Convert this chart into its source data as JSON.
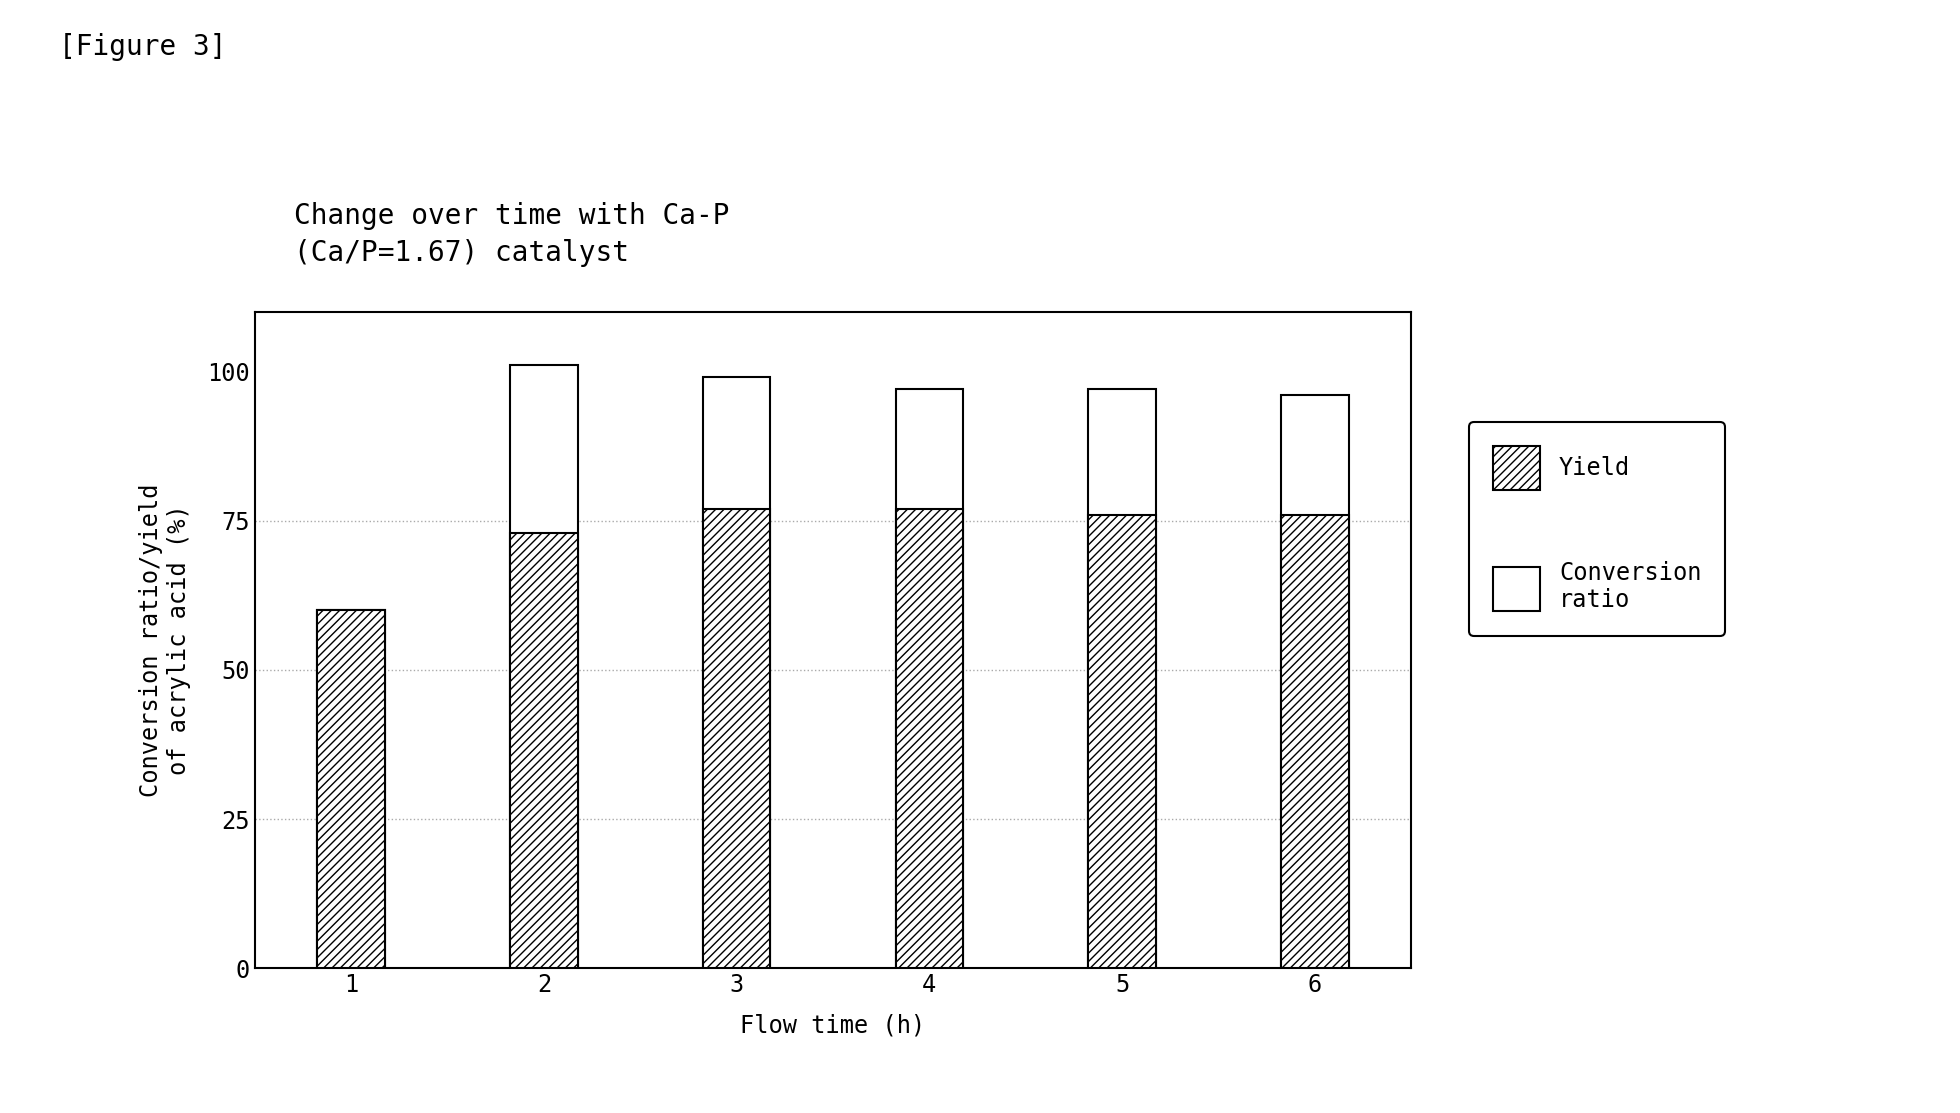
{
  "title_line1": "Change over time with Ca-P",
  "title_line2": "(Ca/P=1.67) catalyst",
  "figure_label": "[Figure 3]",
  "xlabel": "Flow time (h)",
  "ylabel": "Conversion ratio/yield\nof acrylic acid (%)",
  "x_categories": [
    1,
    2,
    3,
    4,
    5,
    6
  ],
  "yield_values": [
    60,
    73,
    77,
    77,
    76,
    76
  ],
  "conversion_values": [
    60,
    101,
    99,
    97,
    97,
    96
  ],
  "ylim": [
    0,
    110
  ],
  "yticks": [
    0,
    25,
    50,
    75,
    100
  ],
  "bar_width": 0.35,
  "hatch_pattern": "////",
  "grid_color": "#aaaaaa",
  "legend_yield_label": "Yield",
  "legend_conversion_label": "Conversion\nratio",
  "background_color": "#ffffff",
  "figure_label_fontsize": 20,
  "title_fontsize": 20,
  "axis_label_fontsize": 17,
  "tick_fontsize": 17,
  "legend_fontsize": 17
}
